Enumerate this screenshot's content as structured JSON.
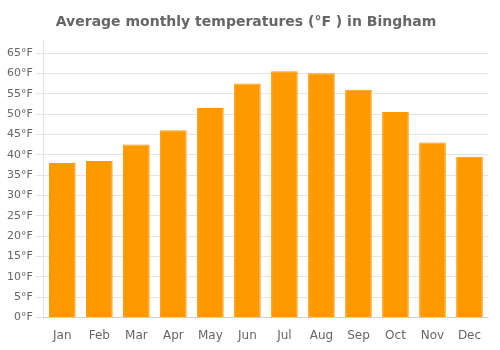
{
  "chart_data": {
    "type": "bar",
    "title": "Average monthly temperatures (°F ) in Bingham",
    "categories": [
      "Jan",
      "Feb",
      "Mar",
      "Apr",
      "May",
      "Jun",
      "Jul",
      "Aug",
      "Sep",
      "Oct",
      "Nov",
      "Dec"
    ],
    "values": [
      38,
      38.5,
      42.5,
      46,
      51.5,
      57.5,
      60.5,
      60,
      56,
      50.5,
      43,
      39.5
    ],
    "color": "#FF9900",
    "ylim": [
      0,
      68
    ],
    "yticks": [
      {
        "value": 0,
        "label": "0°F"
      },
      {
        "value": 5,
        "label": "5°F"
      },
      {
        "value": 10,
        "label": "10°F"
      },
      {
        "value": 15,
        "label": "15°F"
      },
      {
        "value": 20,
        "label": "20°F"
      },
      {
        "value": 25,
        "label": "25°F"
      },
      {
        "value": 30,
        "label": "30°F"
      },
      {
        "value": 35,
        "label": "35°F"
      },
      {
        "value": 40,
        "label": "40°F"
      },
      {
        "value": 45,
        "label": "45°F"
      },
      {
        "value": 50,
        "label": "50°F"
      },
      {
        "value": 55,
        "label": "55°F"
      },
      {
        "value": 60,
        "label": "60°F"
      },
      {
        "value": 65,
        "label": "65°F"
      }
    ],
    "grid": true
  }
}
